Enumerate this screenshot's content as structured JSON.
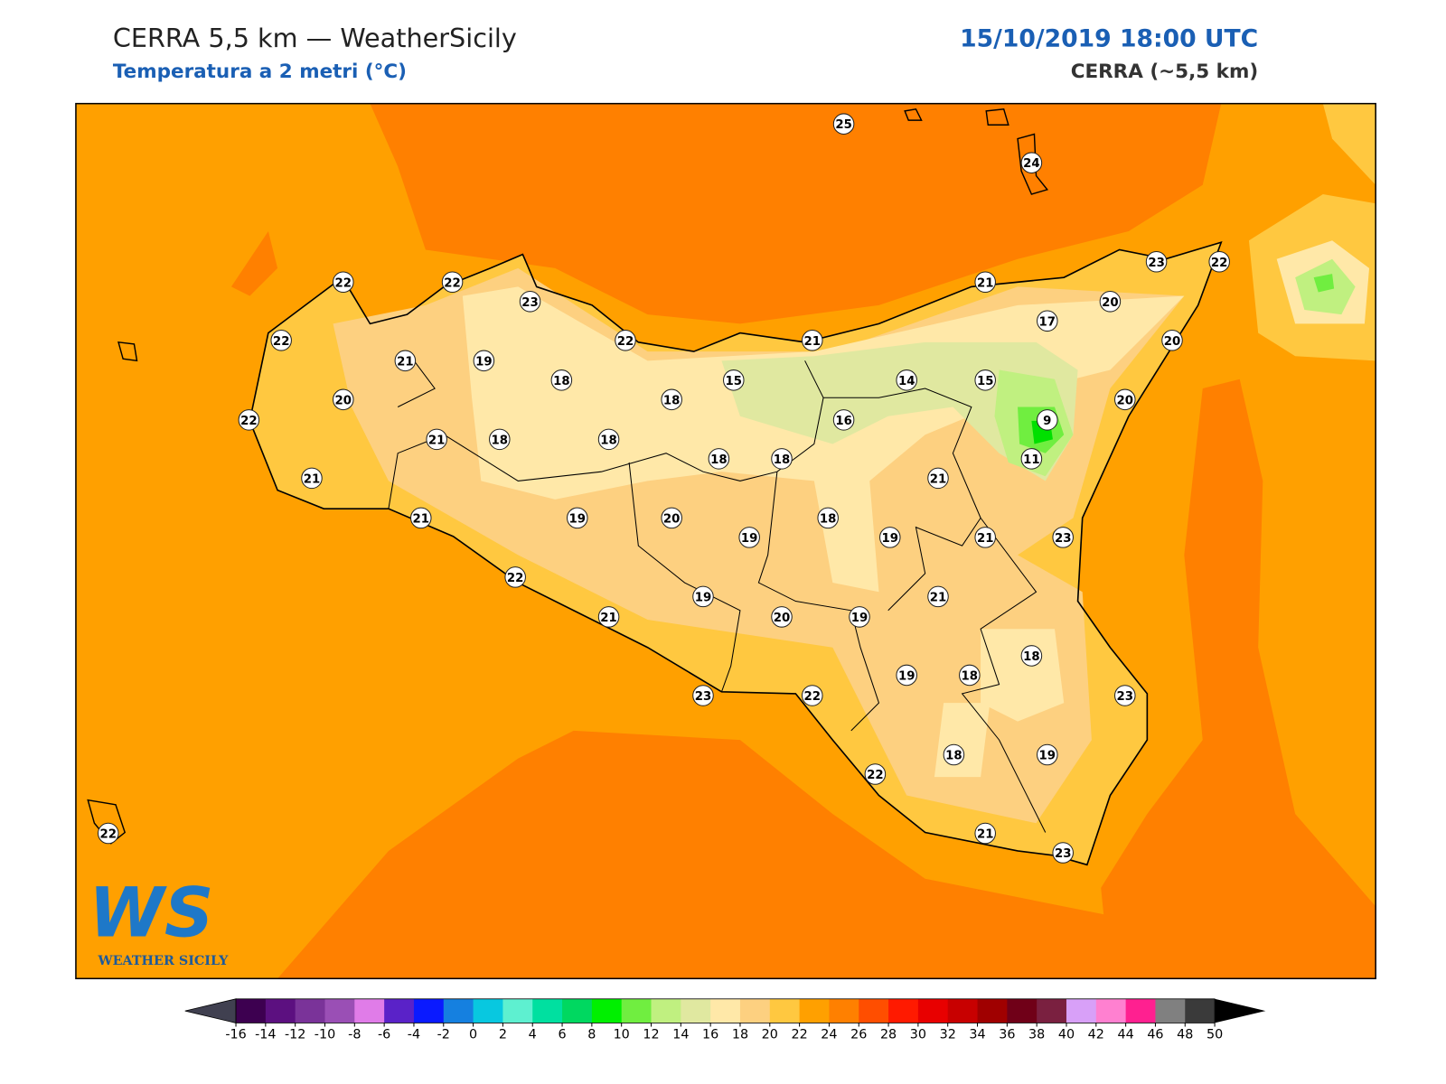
{
  "header": {
    "title": "CERRA 5,5 km — WeatherSicily",
    "subtitle": "Temperatura a 2 metri (°C)",
    "datetime": "15/10/2019 18:00 UTC",
    "source": "CERRA (~5,5 km)"
  },
  "logo": {
    "mark": "WS",
    "name": "WEATHER SICILY"
  },
  "stations": [
    25,
    24,
    22,
    22,
    23,
    22,
    21,
    19,
    22,
    21,
    21,
    23,
    22,
    20,
    17,
    20,
    18,
    15,
    14,
    15,
    20,
    18,
    20,
    22,
    16,
    9,
    21,
    18,
    18,
    18,
    18,
    11,
    21,
    21,
    21,
    19,
    20,
    18,
    19,
    19,
    21,
    23,
    22,
    21,
    19,
    21,
    20,
    19,
    18,
    19,
    18,
    23,
    22,
    23,
    18,
    19,
    22,
    22,
    21,
    23
  ],
  "colorbar": {
    "ticks": [
      -16,
      -14,
      -12,
      -10,
      -8,
      -6,
      -4,
      -2,
      0,
      2,
      4,
      6,
      8,
      10,
      12,
      14,
      16,
      18,
      20,
      22,
      24,
      26,
      28,
      30,
      32,
      34,
      36,
      38,
      40,
      42,
      44,
      46,
      48,
      50
    ],
    "colors": [
      "#3d0050",
      "#5c1080",
      "#7a3399",
      "#9a4fb5",
      "#e07ce8",
      "#5a22c8",
      "#0a1aff",
      "#1580e0",
      "#08c8e0",
      "#5ef0d0",
      "#00e0a0",
      "#00d860",
      "#00f000",
      "#70ee40",
      "#c0f080",
      "#e0e8a0",
      "#ffe8a8",
      "#fdd080",
      "#ffc840",
      "#ffa000",
      "#ff8000",
      "#ff4e00",
      "#ff1a00",
      "#e80000",
      "#c80000",
      "#a00000",
      "#700018",
      "#7a2040",
      "#d8a0f8",
      "#ff80d0",
      "#ff2090",
      "#808080",
      "#3a3a3a"
    ],
    "under_color": "#404050",
    "over_color": "#000000"
  }
}
